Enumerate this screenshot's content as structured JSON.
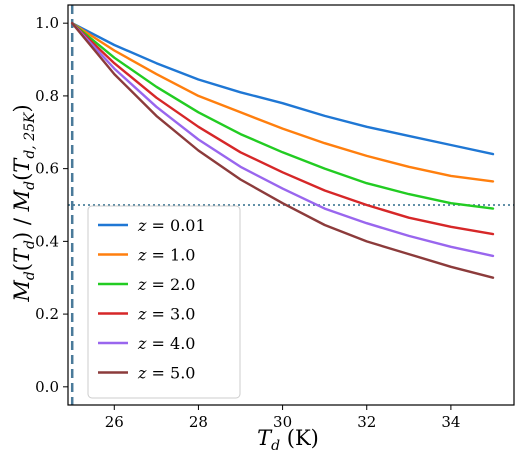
{
  "chart_data": {
    "type": "line",
    "xlabel": "T_d (K)",
    "ylabel": "M_d(T_d) / M_d(T_d,25K)",
    "xlim": [
      24.9,
      35.5
    ],
    "ylim": [
      -0.05,
      1.05
    ],
    "x_ticks": [
      26,
      28,
      30,
      32,
      34
    ],
    "y_ticks": [
      0.0,
      0.2,
      0.4,
      0.6,
      0.8,
      1.0
    ],
    "x_tick_labels": [
      "26",
      "28",
      "30",
      "32",
      "34"
    ],
    "y_tick_labels": [
      "0.0",
      "0.2",
      "0.4",
      "0.6",
      "0.8",
      "1.0"
    ],
    "vline": {
      "x": 25.0,
      "style": "dashed",
      "color": "#4a7a9a"
    },
    "hline": {
      "y": 0.5,
      "style": "dotted",
      "color": "#2e6b8a"
    },
    "grid": false,
    "legend_position": "lower-left",
    "x": [
      25,
      26,
      27,
      28,
      29,
      30,
      31,
      32,
      33,
      34,
      35
    ],
    "series": [
      {
        "name": "z = 0.01",
        "color": "#1f77d4",
        "values": [
          1.0,
          0.94,
          0.89,
          0.845,
          0.81,
          0.78,
          0.745,
          0.715,
          0.69,
          0.665,
          0.64
        ]
      },
      {
        "name": "z = 1.0",
        "color": "#ff7f0e",
        "values": [
          1.0,
          0.925,
          0.86,
          0.8,
          0.755,
          0.71,
          0.67,
          0.635,
          0.605,
          0.58,
          0.565
        ]
      },
      {
        "name": "z = 2.0",
        "color": "#22cc22",
        "values": [
          1.0,
          0.905,
          0.825,
          0.755,
          0.695,
          0.645,
          0.6,
          0.56,
          0.53,
          0.505,
          0.49
        ]
      },
      {
        "name": "z = 3.0",
        "color": "#d62728",
        "values": [
          1.0,
          0.89,
          0.795,
          0.715,
          0.645,
          0.59,
          0.54,
          0.5,
          0.465,
          0.44,
          0.42
        ]
      },
      {
        "name": "z = 4.0",
        "color": "#9966ee",
        "values": [
          1.0,
          0.875,
          0.77,
          0.68,
          0.605,
          0.545,
          0.49,
          0.45,
          0.415,
          0.385,
          0.36
        ]
      },
      {
        "name": "z = 5.0",
        "color": "#8c3b3b",
        "values": [
          1.0,
          0.86,
          0.745,
          0.65,
          0.57,
          0.505,
          0.445,
          0.4,
          0.365,
          0.33,
          0.3
        ]
      }
    ]
  }
}
